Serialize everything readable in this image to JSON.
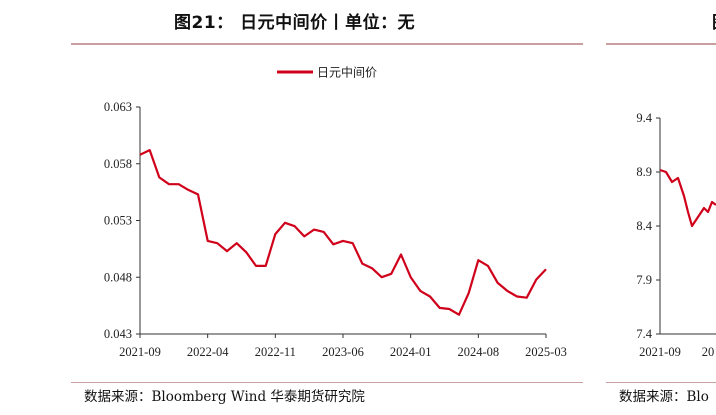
{
  "figure": {
    "title": "图21：   日元中间价丨单位：无",
    "source": "数据来源：Bloomberg Wind 华泰期货研究院"
  },
  "right_panel": {
    "title_fragment": "图",
    "source_fragment": "数据来源：Blo",
    "y_ticks": [
      "9.4",
      "8.9",
      "8.4",
      "7.9",
      "7.4"
    ],
    "x_ticks": [
      "2021-09",
      "20"
    ]
  },
  "colors": {
    "line": "#d0021b",
    "rule": "#c9a0a0",
    "axis": "#333333"
  },
  "chart_data": [
    {
      "type": "line",
      "title": "",
      "xlabel": "",
      "ylabel": "",
      "x_range": [
        "2021-09",
        "2025-03"
      ],
      "ylim": [
        0.043,
        0.063
      ],
      "y_ticks": [
        "0.043",
        "0.048",
        "0.053",
        "0.058",
        "0.063"
      ],
      "x_ticks": [
        "2021-09",
        "2022-04",
        "2022-11",
        "2023-06",
        "2024-01",
        "2024-08",
        "2025-03"
      ],
      "legend": {
        "position": "top-center"
      },
      "grid": false,
      "series": [
        {
          "name": "日元中间价",
          "color": "#d0021b",
          "x": [
            "2021-09",
            "2021-10",
            "2021-11",
            "2021-12",
            "2022-01",
            "2022-02",
            "2022-03",
            "2022-04",
            "2022-05",
            "2022-06",
            "2022-07",
            "2022-08",
            "2022-09",
            "2022-10",
            "2022-11",
            "2022-12",
            "2023-01",
            "2023-02",
            "2023-03",
            "2023-04",
            "2023-05",
            "2023-06",
            "2023-07",
            "2023-08",
            "2023-09",
            "2023-10",
            "2023-11",
            "2023-12",
            "2024-01",
            "2024-02",
            "2024-03",
            "2024-04",
            "2024-05",
            "2024-06",
            "2024-07",
            "2024-08",
            "2024-09",
            "2024-10",
            "2024-11",
            "2024-12",
            "2025-01",
            "2025-02",
            "2025-03"
          ],
          "values": [
            0.0588,
            0.0592,
            0.0568,
            0.0562,
            0.0562,
            0.0557,
            0.0553,
            0.0512,
            0.051,
            0.0503,
            0.051,
            0.0502,
            0.049,
            0.049,
            0.0518,
            0.0528,
            0.0525,
            0.0516,
            0.0522,
            0.052,
            0.0509,
            0.0512,
            0.051,
            0.0492,
            0.0488,
            0.048,
            0.0483,
            0.05,
            0.048,
            0.0468,
            0.0463,
            0.0453,
            0.0452,
            0.0447,
            0.0466,
            0.0495,
            0.049,
            0.0475,
            0.0468,
            0.0463,
            0.0462,
            0.0478,
            0.0487
          ]
        }
      ]
    }
  ]
}
